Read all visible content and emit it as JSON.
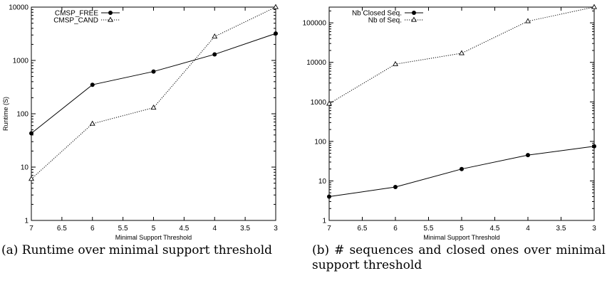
{
  "chart_data": [
    {
      "type": "line",
      "title": "",
      "xlabel": "Minimal Support Threshold",
      "ylabel": "Runtime (S)",
      "x_reversed": true,
      "xlim": [
        7,
        3
      ],
      "x_ticks": [
        "7",
        "6.5",
        "6",
        "5.5",
        "5",
        "4.5",
        "4",
        "3.5",
        "3"
      ],
      "y_scale": "log",
      "ylim": [
        1,
        10000
      ],
      "y_ticks": [
        "1",
        "10",
        "100",
        "1000",
        "10000"
      ],
      "grid": false,
      "legend_position": "top-left",
      "x": [
        7,
        6,
        5,
        4,
        3
      ],
      "series": [
        {
          "name": "CMSP_FREE",
          "values": [
            43,
            350,
            620,
            1300,
            3200
          ],
          "marker": "circle",
          "style": "solid"
        },
        {
          "name": "CMSP_CAND",
          "values": [
            6,
            65,
            130,
            2800,
            10000
          ],
          "marker": "triangle",
          "style": "dotted"
        }
      ]
    },
    {
      "type": "line",
      "title": "",
      "xlabel": "Minimal Support Threshold",
      "ylabel": "",
      "x_reversed": true,
      "xlim": [
        7,
        3
      ],
      "x_ticks": [
        "7",
        "6.5",
        "6",
        "5.5",
        "5",
        "4.5",
        "4",
        "3.5",
        "3"
      ],
      "y_scale": "log",
      "ylim": [
        1,
        250000
      ],
      "y_ticks": [
        "1",
        "10",
        "100",
        "1000",
        "10000",
        "100000"
      ],
      "grid": false,
      "legend_position": "top-left",
      "x": [
        7,
        6,
        5,
        4,
        3
      ],
      "series": [
        {
          "name": "Nb Closed Seq.",
          "values": [
            4,
            7,
            20,
            45,
            75
          ],
          "marker": "circle",
          "style": "solid"
        },
        {
          "name": "Nb of Seq.",
          "values": [
            900,
            9000,
            17000,
            110000,
            250000
          ],
          "marker": "triangle",
          "style": "dotted"
        }
      ]
    }
  ],
  "captions": {
    "a": "(a) Runtime over minimal support threshold",
    "b": "(b) # sequences and closed ones over minimal support threshold"
  }
}
